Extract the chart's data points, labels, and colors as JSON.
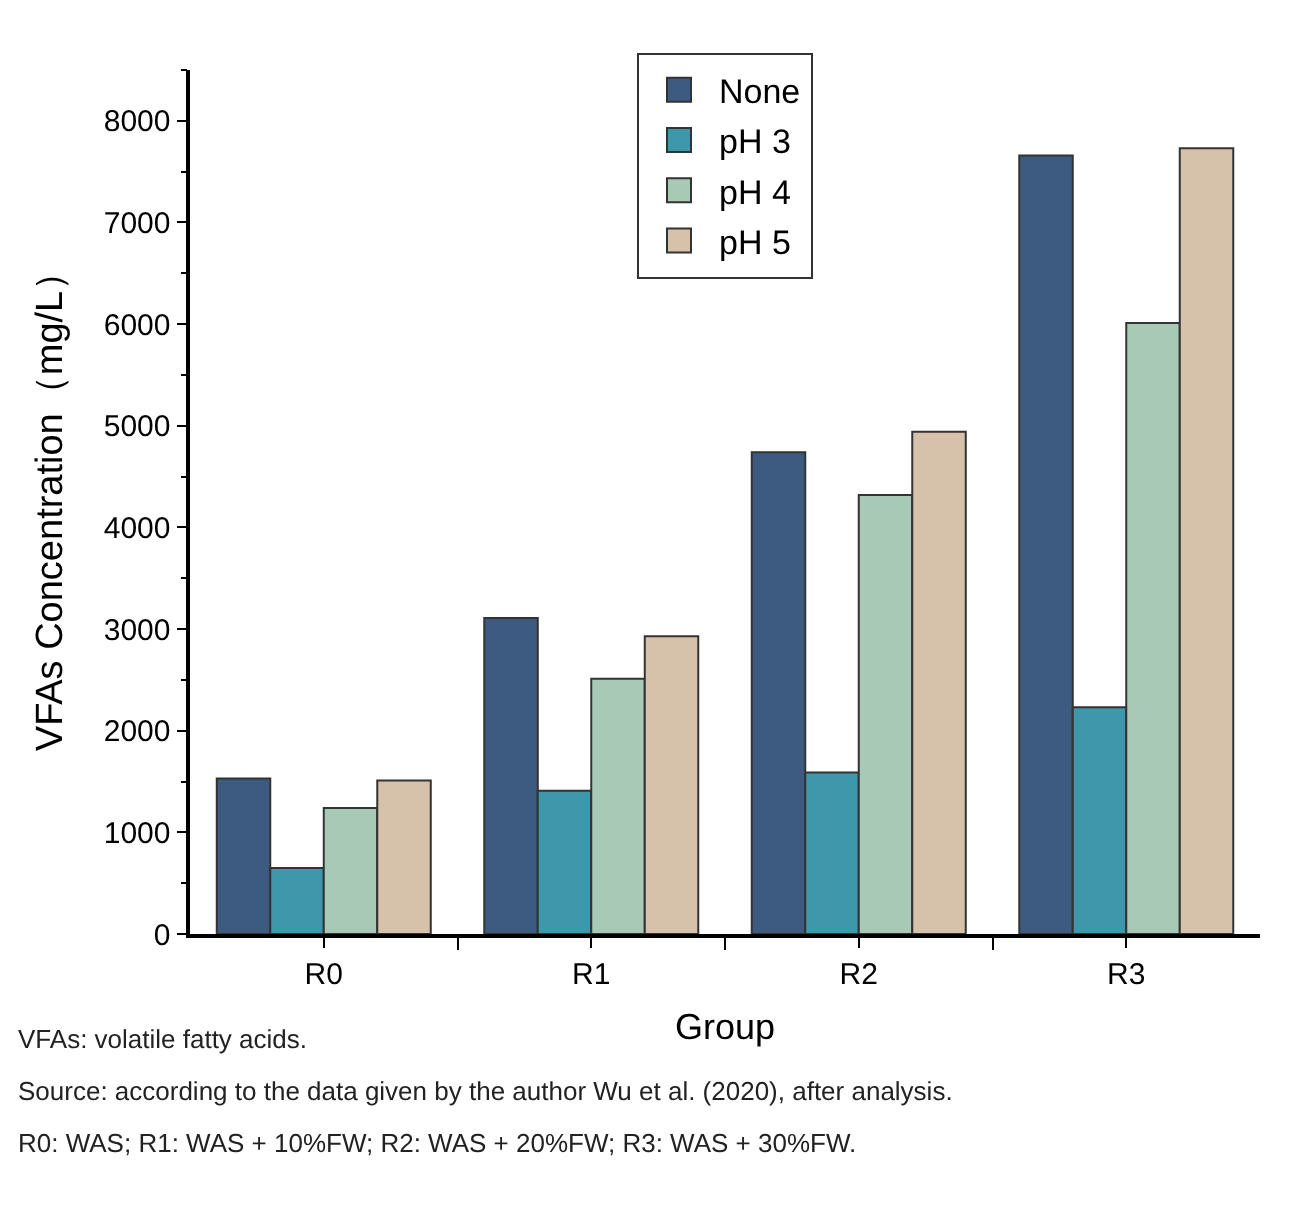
{
  "chart_data": {
    "type": "bar",
    "xlabel": "Group",
    "ylabel": "VFAs Concentration（mg/L）",
    "categories": [
      "R0",
      "R1",
      "R2",
      "R3"
    ],
    "series": [
      {
        "name": "None",
        "color": "#3d5a80",
        "values": [
          1530,
          3110,
          4740,
          7660
        ]
      },
      {
        "name": "pH 3",
        "color": "#3f97ab",
        "values": [
          650,
          1410,
          1590,
          2230
        ]
      },
      {
        "name": "pH 4",
        "color": "#a8c9b6",
        "values": [
          1240,
          2510,
          4320,
          6010
        ]
      },
      {
        "name": "pH 5",
        "color": "#d6c1aa",
        "values": [
          1510,
          2930,
          4940,
          7730
        ]
      }
    ],
    "ylim": [
      0,
      8500
    ],
    "yticks": [
      0,
      1000,
      2000,
      3000,
      4000,
      5000,
      6000,
      7000,
      8000
    ],
    "legend": "top",
    "annotations": [
      "VFAs: volatile fatty acids.",
      "Source: according to the data given by the author Wu et al. (2020), after analysis.",
      "R0: WAS; R1: WAS + 10%FW; R2: WAS + 20%FW; R3: WAS + 30%FW."
    ]
  }
}
